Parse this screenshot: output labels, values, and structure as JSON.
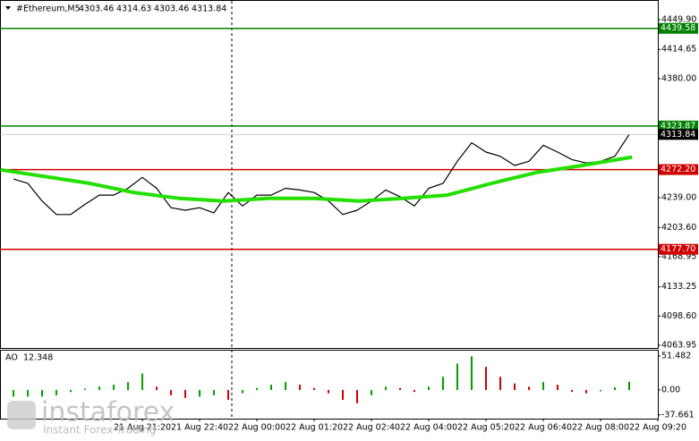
{
  "chart_data": {
    "type": "line",
    "header": {
      "symbol": "#Ethereum,M5",
      "ohlc": [
        "4303.46",
        "4314.63",
        "4303.46",
        "4313.84"
      ]
    },
    "x": [
      0,
      1,
      2,
      3,
      4,
      5,
      6,
      7,
      8,
      9,
      10,
      11,
      12,
      13,
      14,
      15,
      16,
      17,
      18,
      19,
      20,
      21,
      22,
      23,
      24,
      25,
      26,
      27,
      28,
      29,
      30,
      31,
      32,
      33,
      34,
      35,
      36,
      37,
      38,
      39,
      40,
      41,
      42,
      43
    ],
    "xlim": [
      -0.94,
      45
    ],
    "xticks": [
      {
        "value": 9,
        "label": "21 Aug 21:20"
      },
      {
        "value": 13,
        "label": "21 Aug 22:40"
      },
      {
        "value": 17,
        "label": "22 Aug 00:00"
      },
      {
        "value": 21,
        "label": "22 Aug 01:20"
      },
      {
        "value": 25,
        "label": "22 Aug 02:40"
      },
      {
        "value": 29,
        "label": "22 Aug 04:00"
      },
      {
        "value": 33,
        "label": "22 Aug 05:20"
      },
      {
        "value": 37,
        "label": "22 Aug 06:40"
      },
      {
        "value": 41,
        "label": "22 Aug 08:00"
      },
      {
        "value": 45,
        "label": "22 Aug 09:20"
      }
    ],
    "ylim": [
      4059.7,
      4473.2
    ],
    "yticks": [
      {
        "value": 4449.9,
        "label": "4449.90"
      },
      {
        "value": 4414.65,
        "label": "4414.65"
      },
      {
        "value": 4380,
        "label": "4380.00"
      },
      {
        "value": 4239,
        "label": "4239.00"
      },
      {
        "value": 4203.6,
        "label": "4203.60"
      },
      {
        "value": 4168.95,
        "label": "4168.95"
      },
      {
        "value": 4133.25,
        "label": "4133.25"
      },
      {
        "value": 4098.6,
        "label": "4098.60"
      },
      {
        "value": 4063.95,
        "label": "4063.95"
      }
    ],
    "series": [
      {
        "color": "#000000",
        "values": [
          4261,
          4256,
          4235,
          4219,
          4219,
          4231,
          4242,
          4242,
          4250,
          4263,
          4250,
          4227,
          4224,
          4227,
          4221,
          4245,
          4229,
          4242,
          4242,
          4250,
          4248,
          4245,
          4235,
          4219,
          4224,
          4235,
          4248,
          4240,
          4229,
          4250,
          4256,
          4282,
          4304,
          4293,
          4288,
          4277,
          4282,
          4301,
          4293,
          4284,
          4280,
          4282,
          4288,
          4313.84
        ]
      },
      {
        "color": "#22e000",
        "x": [
          -0.9,
          5.3,
          8.4,
          11.6,
          14.7,
          17.8,
          21,
          24.1,
          27.2,
          30.3,
          33.4,
          36.6,
          39.7,
          43.2
        ],
        "values": [
          4272,
          4256,
          4245,
          4238,
          4235,
          4238,
          4238,
          4235,
          4238,
          4242,
          4256,
          4269,
          4277,
          4287
        ]
      }
    ],
    "levels": [
      {
        "value": 4439.58,
        "label": "4439.58",
        "color": "#008000"
      },
      {
        "value": 4323.87,
        "label": "4323.87",
        "color": "#008000"
      },
      {
        "value": 4272.2,
        "label": "4272.20",
        "color": "#d00000"
      },
      {
        "value": 4177.7,
        "label": "4177.70",
        "color": "#d00000"
      }
    ],
    "current_price": {
      "value": 4313.84,
      "label": "4313.84"
    },
    "ao": {
      "label": "AO",
      "value": 12.348,
      "up_color": "#00a000",
      "down_color": "#d00000",
      "values": [
        -10,
        -10,
        -10,
        -8,
        -3,
        2,
        5,
        8,
        12,
        25,
        5,
        -8,
        -12,
        -10,
        -8,
        -15,
        -5,
        3,
        8,
        12,
        8,
        3,
        -5,
        -15,
        -20,
        -8,
        5,
        3,
        -3,
        5,
        20,
        40,
        51,
        35,
        20,
        10,
        5,
        12,
        8,
        -3,
        -5,
        -2,
        4,
        12.348
      ],
      "ylim": [
        -43.4,
        59.6
      ],
      "yticks": [
        {
          "value": 51.482,
          "label": "51.482"
        },
        {
          "value": 0,
          "label": "0.00"
        },
        {
          "value": -37.661,
          "label": "-37.661"
        }
      ]
    },
    "watermark": {
      "brand": "instaforex",
      "tagline": "Instant Forex Trading"
    }
  }
}
